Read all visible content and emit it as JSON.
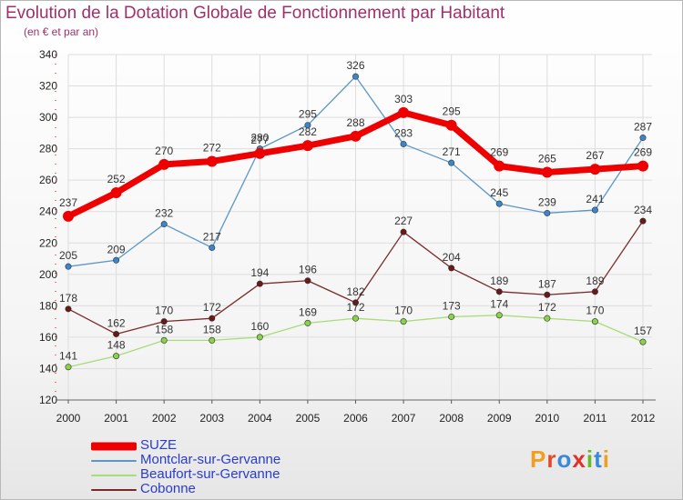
{
  "title": "Evolution de la Dotation Globale de Fonctionnement par Habitant",
  "subtitle": "(en € et par an)",
  "logo": {
    "text": "Proxiti",
    "letters": [
      {
        "ch": "P",
        "color": "#f0a020"
      },
      {
        "ch": "r",
        "color": "#e04a2a"
      },
      {
        "ch": "o",
        "color": "#3a8ad8"
      },
      {
        "ch": "x",
        "color": "#e0302a"
      },
      {
        "ch": "i",
        "color": "#6ab82a"
      },
      {
        "ch": "t",
        "color": "#3a8ad8"
      },
      {
        "ch": "i",
        "color": "#f0a020"
      }
    ]
  },
  "chart_data": {
    "type": "line",
    "x": [
      "2000",
      "2001",
      "2002",
      "2003",
      "2004",
      "2005",
      "2006",
      "2007",
      "2008",
      "2009",
      "2010",
      "2011",
      "2012"
    ],
    "ylim": [
      120,
      340
    ],
    "yticks": [
      120,
      140,
      160,
      180,
      200,
      220,
      240,
      260,
      280,
      300,
      320,
      340
    ],
    "grid": true,
    "legend_position": "bottom-left",
    "series": [
      {
        "name": "Montclar-sur-Gervanne",
        "color": "#5a96c8",
        "marker": "#3a86cc",
        "width": 1.3,
        "values": [
          205,
          209,
          232,
          217,
          280,
          295,
          326,
          283,
          271,
          245,
          239,
          241,
          287
        ]
      },
      {
        "name": "Beaufort-sur-Gervanne",
        "color": "#a8dc78",
        "marker": "#8ad24a",
        "width": 1.3,
        "values": [
          141,
          148,
          158,
          158,
          160,
          169,
          172,
          170,
          173,
          174,
          172,
          170,
          157
        ]
      },
      {
        "name": "Cobonne",
        "color": "#7a2a2a",
        "marker": "#6a1818",
        "width": 1.3,
        "values": [
          178,
          162,
          170,
          172,
          194,
          196,
          182,
          227,
          204,
          189,
          187,
          189,
          234
        ]
      },
      {
        "name": "SUZE",
        "color": "#ee0000",
        "marker": "#ee0000",
        "width": 7,
        "values": [
          237,
          252,
          270,
          272,
          277,
          282,
          288,
          303,
          295,
          269,
          265,
          267,
          269
        ]
      }
    ]
  }
}
